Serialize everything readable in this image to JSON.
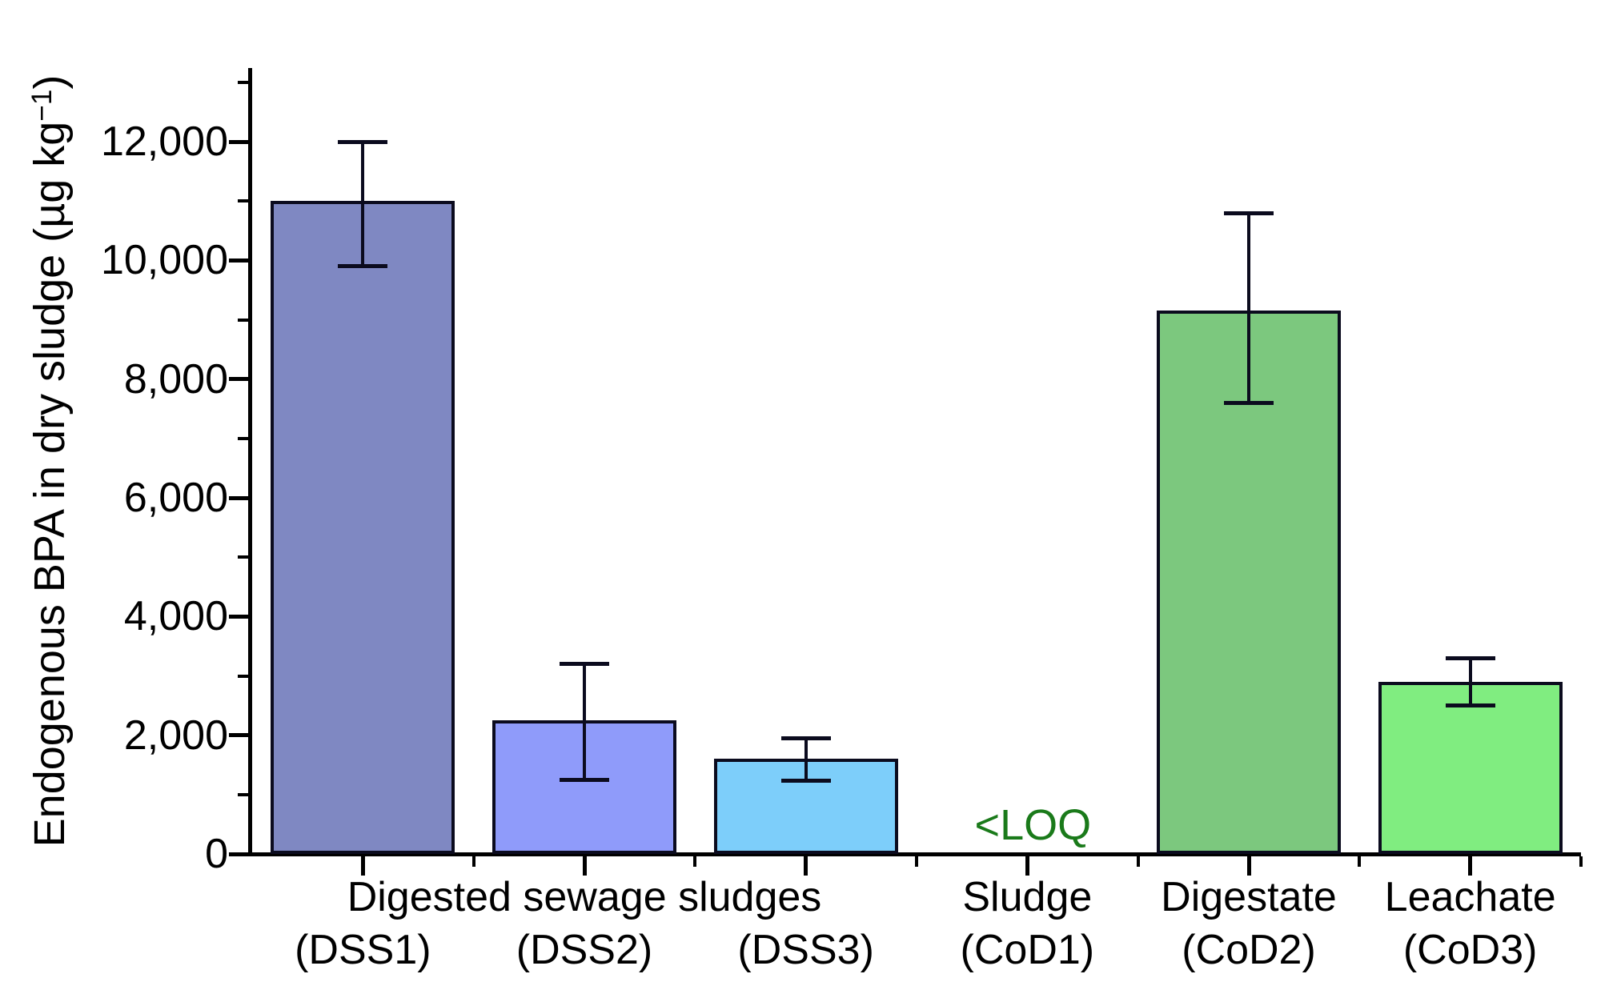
{
  "chart_data": {
    "type": "bar",
    "title": "",
    "ylabel": "Endogenous BPA in dry sludge (µg kg−1)",
    "ylabel_parts": {
      "main": "Endogenous BPA in dry sludge (µg kg",
      "sup": "−1",
      "close": ")"
    },
    "xlabel": "",
    "ylim": [
      0,
      13000
    ],
    "grid": false,
    "legend_position": "none",
    "y_major_ticks": [
      0,
      2000,
      4000,
      6000,
      8000,
      10000,
      12000
    ],
    "y_tick_labels": [
      "0",
      "2,000",
      "4,000",
      "6,000",
      "8,000",
      "10,000",
      "12,000"
    ],
    "y_minor_ticks": [
      1000,
      3000,
      5000,
      7000,
      9000,
      11000,
      13000
    ],
    "group_label": "Digested sewage sludges",
    "group_label_span": [
      0,
      2
    ],
    "category_top_labels": [
      "",
      "",
      "",
      "Sludge",
      "Digestate",
      "Leachate"
    ],
    "categories": [
      "(DSS1)",
      "(DSS2)",
      "(DSS3)",
      "(CoD1)",
      "(CoD2)",
      "(CoD3)"
    ],
    "series": [
      {
        "name": "Endogenous BPA in dry sludge",
        "values": [
          11000,
          2250,
          1600,
          null,
          9150,
          2900
        ],
        "error_low": [
          9900,
          1250,
          1230,
          null,
          7600,
          2500
        ],
        "error_high": [
          12000,
          3200,
          1950,
          null,
          10800,
          3300
        ],
        "bar_colors": [
          "#7F88C2",
          "#8F9BFA",
          "#7DCEFA",
          null,
          "#7CC87E",
          "#80ED80"
        ],
        "bar_edge_color": "#0b0b1e"
      }
    ],
    "annotations": [
      {
        "text": "<LOQ",
        "category_index": 3,
        "color": "#1A7A1A"
      }
    ],
    "axis_color": "#000000",
    "background_color": "#ffffff"
  }
}
